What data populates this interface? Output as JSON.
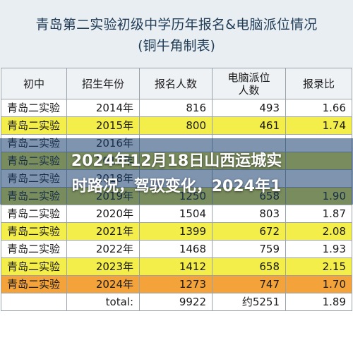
{
  "title": {
    "line1": "青岛第二实验初级中学历年报名&电脑派位情况",
    "line2": "(铜牛角制表)"
  },
  "table": {
    "headers": [
      "初中",
      "招生年份",
      "报名人数",
      "电脑派位\n人数",
      "报录比"
    ],
    "rows": [
      {
        "school": "青岛二实验",
        "year": "2014年",
        "applicants": "816",
        "allocated": "493",
        "ratio": "1.66",
        "style": "white"
      },
      {
        "school": "青岛二实验",
        "year": "2015年",
        "applicants": "800",
        "allocated": "461",
        "ratio": "1.74",
        "style": "yellow"
      },
      {
        "school": "青岛二实验",
        "year": "2016年",
        "applicants": "",
        "allocated": "",
        "ratio": "",
        "style": "white"
      },
      {
        "school": "青岛二实验",
        "year": "2017年",
        "applicants": "",
        "allocated": "",
        "ratio": "",
        "style": "yellow"
      },
      {
        "school": "青岛二实验",
        "year": "2018年",
        "applicants": "",
        "allocated": "",
        "ratio": "",
        "style": "white"
      },
      {
        "school": "青岛二实验",
        "year": "2019年",
        "applicants": "1250",
        "allocated": "658",
        "ratio": "1.90",
        "style": "yellow"
      },
      {
        "school": "青岛二实验",
        "year": "2020年",
        "applicants": "1504",
        "allocated": "803",
        "ratio": "1.87",
        "style": "white"
      },
      {
        "school": "青岛二实验",
        "year": "2021年",
        "applicants": "1399",
        "allocated": "672",
        "ratio": "2.08",
        "style": "yellow"
      },
      {
        "school": "青岛二实验",
        "year": "2022年",
        "applicants": "1468",
        "allocated": "759",
        "ratio": "1.93",
        "style": "white"
      },
      {
        "school": "青岛二实验",
        "year": "2023年",
        "applicants": "1412",
        "allocated": "658",
        "ratio": "2.15",
        "style": "yellow"
      },
      {
        "school": "青岛二实验",
        "year": "2024年",
        "applicants": "1273",
        "allocated": "747",
        "ratio": "1.70",
        "style": "orange"
      }
    ],
    "total": {
      "school": "",
      "year": "total:",
      "applicants": "9922",
      "allocated": "约5251",
      "ratio": "1.89"
    }
  },
  "overlay": {
    "line1": "2024年12月18日山西运城实",
    "line2": "时路况，驾驭变化，2024年1"
  }
}
